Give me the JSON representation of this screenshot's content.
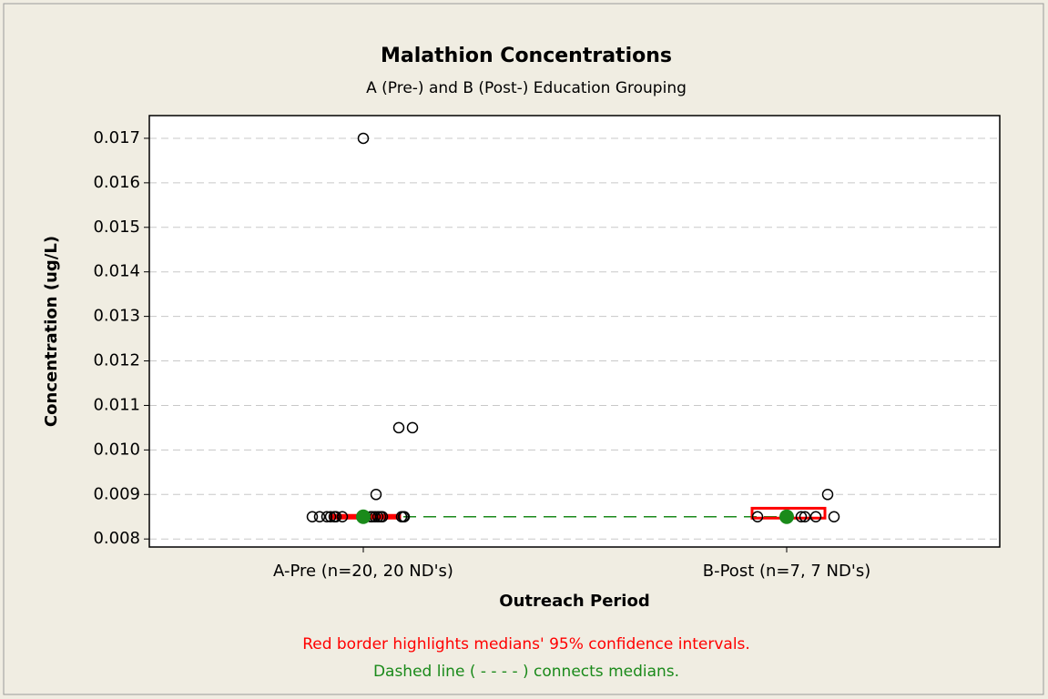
{
  "chart_data": {
    "type": "box",
    "title": "Malathion Concentrations",
    "subtitle": "A (Pre-) and B (Post-) Education Grouping",
    "xlabel": "Outreach Period",
    "ylabel": "Concentration (ug/L)",
    "categories": [
      "A-Pre (n=20, 20 ND's)",
      "B-Post (n=7, 7 ND's)"
    ],
    "points": [
      [
        0.0085,
        0.0085,
        0.0085,
        0.0085,
        0.0085,
        0.0085,
        0.0085,
        0.0085,
        0.0085,
        0.0085,
        0.0085,
        0.0085,
        0.0085,
        0.0085,
        0.0085,
        0.0085,
        0.017,
        0.0105,
        0.0105,
        0.009
      ],
      [
        0.0085,
        0.0085,
        0.0085,
        0.0085,
        0.0085,
        0.0085,
        0.009
      ]
    ],
    "q1": [
      0.0085,
      0.0085
    ],
    "q3": [
      0.0085,
      0.0085
    ],
    "medians": [
      0.0085,
      0.0085
    ],
    "ci": [
      [
        0.0085,
        0.0085
      ],
      [
        0.0085,
        0.00866
      ]
    ],
    "box_color": "#000000",
    "ci_color": "#ff0000",
    "median_color": "#1a8a1a",
    "ylim": [
      0.00782,
      0.01751
    ],
    "yticks": [
      0.008,
      0.009,
      {
        "value": 0.01,
        "label": "0.010"
      },
      0.011,
      0.012,
      0.013,
      0.014,
      0.015,
      0.016,
      0.017
    ],
    "grid": true,
    "annotations": [
      "Red border highlights medians' 95% confidence intervals.",
      "Dashed line ( - - - - ) connects medians."
    ]
  }
}
